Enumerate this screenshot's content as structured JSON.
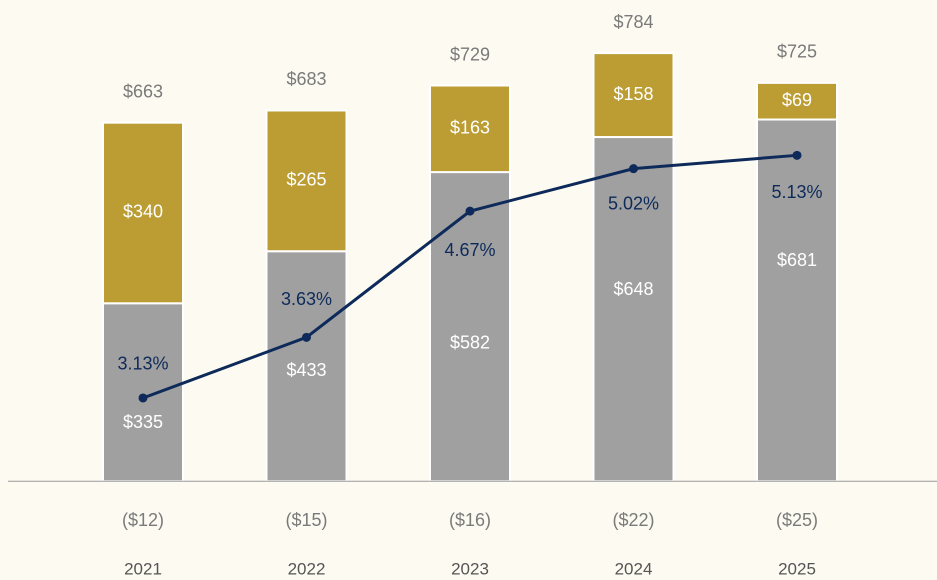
{
  "chart_data": {
    "type": "bar",
    "stacked": true,
    "categories": [
      "2021",
      "2022",
      "2023",
      "2024",
      "2025"
    ],
    "ylim": [
      -186,
      906
    ],
    "y2lim": [
      1.63,
      6.41
    ],
    "series": [
      {
        "color": "#a0a0a0",
        "values": [
          335,
          433,
          582,
          648,
          681
        ],
        "value_labels": [
          "$335",
          "$433",
          "$582",
          "$648",
          "$681"
        ]
      },
      {
        "color": "#bb9d34",
        "values": [
          340,
          265,
          163,
          158,
          69
        ],
        "value_labels": [
          "$340",
          "$265",
          "$163",
          "$158",
          "$69"
        ]
      },
      {
        "color": "#b5833a",
        "values": [
          -12,
          -15,
          -16,
          -22,
          -25
        ],
        "value_labels": [
          "($12)",
          "($15)",
          "($16)",
          "($22)",
          "($25)"
        ]
      },
      {
        "type": "line",
        "axis": "y2",
        "color": "#0d2a5a",
        "values": [
          3.13,
          3.63,
          4.67,
          5.02,
          5.13
        ],
        "value_labels": [
          "3.13%",
          "3.63%",
          "4.67%",
          "5.02%",
          "5.13%"
        ]
      }
    ],
    "totals": {
      "values": [
        663,
        683,
        729,
        784,
        725
      ],
      "value_labels": [
        "$663",
        "$683",
        "$729",
        "$784",
        "$725"
      ]
    }
  }
}
